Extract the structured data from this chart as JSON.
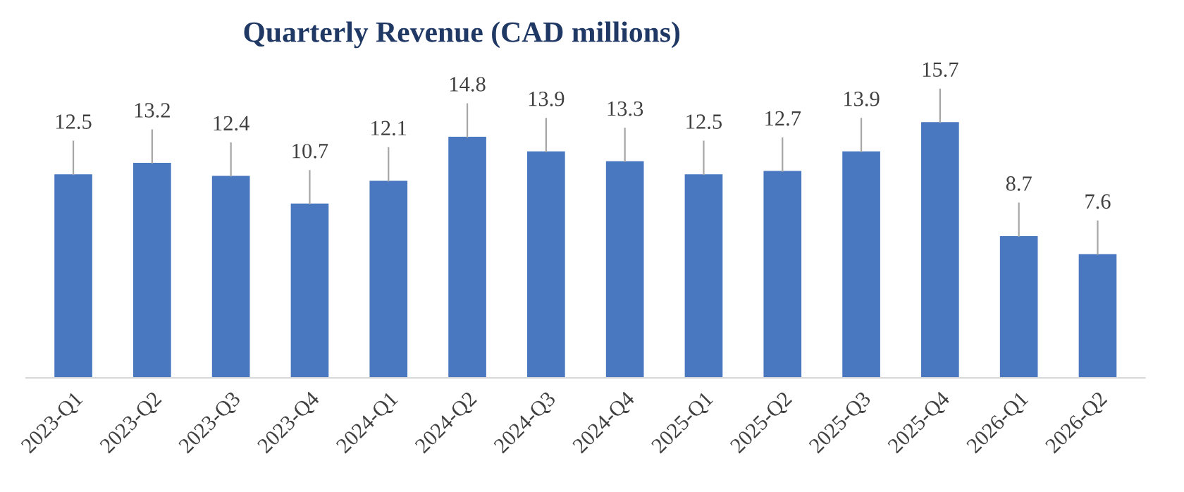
{
  "chart_data": {
    "type": "bar",
    "title": "Quarterly Revenue (CAD millions)",
    "categories": [
      "2023-Q1",
      "2023-Q2",
      "2023-Q3",
      "2023-Q4",
      "2024-Q1",
      "2024-Q2",
      "2024-Q3",
      "2024-Q4",
      "2025-Q1",
      "2025-Q2",
      "2025-Q3",
      "2025-Q4",
      "2026-Q1",
      "2026-Q2"
    ],
    "values": [
      12.5,
      13.2,
      12.4,
      10.7,
      12.1,
      14.8,
      13.9,
      13.3,
      12.5,
      12.7,
      13.9,
      15.7,
      8.7,
      7.6
    ],
    "color": "#4a78c0",
    "data_labels": true
  }
}
